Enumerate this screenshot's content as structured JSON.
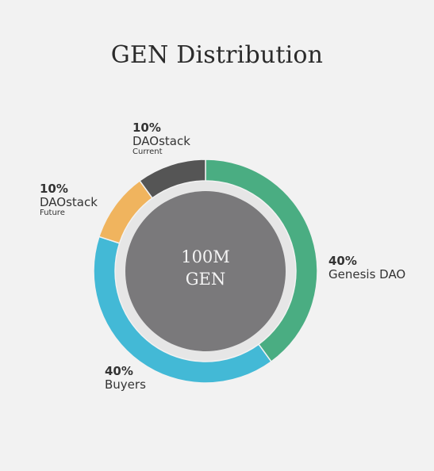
{
  "chart_data": {
    "type": "pie",
    "title": "GEN Distribution",
    "center_label": [
      "100M",
      "GEN"
    ],
    "slices": [
      {
        "label": "Genesis DAO",
        "sublabel": "",
        "value": 40,
        "value_text": "40%",
        "color": "#4aad82"
      },
      {
        "label": "Buyers",
        "sublabel": "",
        "value": 40,
        "value_text": "40%",
        "color": "#43b9d6"
      },
      {
        "label": "DAOstack",
        "sublabel": "Future",
        "value": 10,
        "value_text": "10%",
        "color": "#f0b45e"
      },
      {
        "label": "DAOstack",
        "sublabel": "Current",
        "value": 10,
        "value_text": "10%",
        "color": "#555555"
      }
    ],
    "legend": "none"
  }
}
